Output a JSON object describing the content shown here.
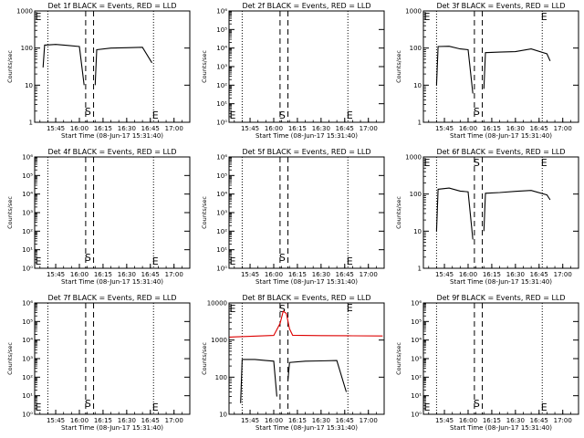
{
  "chart_data": [
    {
      "type": "line",
      "title": "Det 1f BLACK = Events, RED = LLD",
      "xlabel": "Start Time (08-Jun-17 15:31:40)",
      "ylabel": "Counts/sec",
      "xticks": [
        "15:45",
        "16:00",
        "16:15",
        "16:30",
        "16:45",
        "17:00"
      ],
      "yscale": "log",
      "ylim": [
        1,
        1000
      ],
      "yticks": [
        "1",
        "10",
        "100",
        "1000"
      ],
      "markers": {
        "S": "S",
        "E": "E",
        "E_left": "E"
      },
      "series": [
        {
          "color": "#000000",
          "x": [
            "15:37",
            "15:38",
            "15:45",
            "15:52",
            "16:00",
            "16:03"
          ],
          "y": [
            30,
            120,
            125,
            118,
            110,
            10
          ]
        },
        {
          "color": "#000000",
          "x": [
            "16:10",
            "16:11",
            "16:20",
            "16:30",
            "16:40",
            "16:46"
          ],
          "y": [
            10,
            90,
            100,
            102,
            105,
            40
          ]
        }
      ]
    },
    {
      "type": "line",
      "title": "Det 2f BLACK = Events, RED = LLD",
      "xlabel": "Start Time (08-Jun-17 15:31:40)",
      "ylabel": "Counts/sec",
      "xticks": [
        "15:45",
        "16:00",
        "16:15",
        "16:30",
        "16:45",
        "17:00"
      ],
      "yscale": "log",
      "ylim": [
        1,
        1000000
      ],
      "yticks": [
        "10⁰",
        "10¹",
        "10²",
        "10³",
        "10⁴",
        "10⁵",
        "10⁶"
      ],
      "markers": {
        "S": "S",
        "E": "E",
        "E_left": "E"
      },
      "series": []
    },
    {
      "type": "line",
      "title": "Det 3f BLACK = Events, RED = LLD",
      "xlabel": "Start Time (08-Jun-17 15:31:40)",
      "ylabel": "Counts/sec",
      "xticks": [
        "15:45",
        "16:00",
        "16:15",
        "16:30",
        "16:45",
        "17:00"
      ],
      "yscale": "log",
      "ylim": [
        1,
        1000
      ],
      "yticks": [
        "1",
        "10",
        "100",
        "1000"
      ],
      "markers": {
        "S": "S",
        "E": "E",
        "E_left": "E"
      },
      "series": [
        {
          "color": "#000000",
          "x": [
            "15:40",
            "15:41",
            "15:48",
            "15:55",
            "16:00",
            "16:03"
          ],
          "y": [
            10,
            110,
            112,
            95,
            90,
            6
          ]
        },
        {
          "color": "#000000",
          "x": [
            "16:10",
            "16:11",
            "16:20",
            "16:30",
            "16:40",
            "16:50",
            "16:52"
          ],
          "y": [
            8,
            75,
            78,
            80,
            95,
            70,
            45
          ]
        }
      ]
    },
    {
      "type": "line",
      "title": "Det 4f BLACK = Events, RED = LLD",
      "xlabel": "Start Time (08-Jun-17 15:31:40)",
      "ylabel": "Counts/sec",
      "xticks": [
        "15:45",
        "16:00",
        "16:15",
        "16:30",
        "16:45",
        "17:00"
      ],
      "yscale": "log",
      "ylim": [
        1,
        1000000
      ],
      "yticks": [
        "10⁰",
        "10¹",
        "10²",
        "10³",
        "10⁴",
        "10⁵",
        "10⁶"
      ],
      "markers": {
        "S": "S",
        "E": "E",
        "E_left": "E"
      },
      "series": []
    },
    {
      "type": "line",
      "title": "Det 5f BLACK = Events, RED = LLD",
      "xlabel": "Start Time (08-Jun-17 15:31:40)",
      "ylabel": "Counts/sec",
      "xticks": [
        "15:45",
        "16:00",
        "16:15",
        "16:30",
        "16:45",
        "17:00"
      ],
      "yscale": "log",
      "ylim": [
        1,
        1000000
      ],
      "yticks": [
        "10⁰",
        "10¹",
        "10²",
        "10³",
        "10⁴",
        "10⁵",
        "10⁶"
      ],
      "markers": {
        "S": "S",
        "E": "E",
        "E_left": "E"
      },
      "series": []
    },
    {
      "type": "line",
      "title": "Det 6f BLACK = Events, RED = LLD",
      "xlabel": "Start Time (08-Jun-17 15:31:40)",
      "ylabel": "Counts/sec",
      "xticks": [
        "15:45",
        "16:00",
        "16:15",
        "16:30",
        "16:45",
        "17:00"
      ],
      "yscale": "log",
      "ylim": [
        1,
        1000
      ],
      "yticks": [
        "1",
        "10",
        "100",
        "1000"
      ],
      "markers": {
        "S": "S",
        "E": "E",
        "E_left": "E"
      },
      "series": [
        {
          "color": "#000000",
          "x": [
            "15:40",
            "15:41",
            "15:48",
            "15:55",
            "16:00",
            "16:03"
          ],
          "y": [
            10,
            135,
            145,
            120,
            115,
            6
          ]
        },
        {
          "color": "#000000",
          "x": [
            "16:10",
            "16:11",
            "16:20",
            "16:30",
            "16:40",
            "16:50",
            "16:52"
          ],
          "y": [
            10,
            105,
            110,
            118,
            125,
            95,
            70
          ]
        }
      ]
    },
    {
      "type": "line",
      "title": "Det 7f BLACK = Events, RED = LLD",
      "xlabel": "Start Time (08-Jun-17 15:31:40)",
      "ylabel": "Counts/sec",
      "xticks": [
        "15:45",
        "16:00",
        "16:15",
        "16:30",
        "16:45",
        "17:00"
      ],
      "yscale": "log",
      "ylim": [
        1,
        1000000
      ],
      "yticks": [
        "10⁰",
        "10¹",
        "10²",
        "10³",
        "10⁴",
        "10⁵",
        "10⁶"
      ],
      "markers": {
        "S": "S",
        "E": "E",
        "E_left": "E"
      },
      "series": []
    },
    {
      "type": "line",
      "title": "Det 8f BLACK = Events, RED = LLD",
      "xlabel": "Start Time (08-Jun-17 15:31:40)",
      "ylabel": "Counts/sec",
      "xticks": [
        "15:45",
        "16:00",
        "16:15",
        "16:30",
        "16:45",
        "17:00"
      ],
      "yscale": "log",
      "ylim": [
        10,
        10000
      ],
      "yticks": [
        "10",
        "100",
        "1000",
        "10000"
      ],
      "markers": {
        "S": "S",
        "E": "E",
        "E_left": "E"
      },
      "series": [
        {
          "color": "#dd0000",
          "x": [
            "15:32",
            "15:45",
            "16:00",
            "16:04",
            "16:06",
            "16:08",
            "16:10",
            "16:12",
            "16:30",
            "16:50",
            "17:09"
          ],
          "y": [
            1200,
            1260,
            1330,
            2800,
            6000,
            5200,
            2000,
            1350,
            1320,
            1300,
            1290
          ]
        },
        {
          "color": "#000000",
          "x": [
            "15:39",
            "15:40",
            "15:48",
            "15:55",
            "16:00",
            "16:02"
          ],
          "y": [
            20,
            300,
            300,
            280,
            270,
            30
          ]
        },
        {
          "color": "#000000",
          "x": [
            "16:09",
            "16:10",
            "16:20",
            "16:30",
            "16:40",
            "16:46"
          ],
          "y": [
            80,
            250,
            270,
            275,
            280,
            40
          ]
        }
      ]
    },
    {
      "type": "line",
      "title": "Det 9f BLACK = Events, RED = LLD",
      "xlabel": "Start Time (08-Jun-17 15:31:40)",
      "ylabel": "Counts/sec",
      "xticks": [
        "15:45",
        "16:00",
        "16:15",
        "16:30",
        "16:45",
        "17:00"
      ],
      "yscale": "log",
      "ylim": [
        1,
        1000000
      ],
      "yticks": [
        "10⁰",
        "10¹",
        "10²",
        "10³",
        "10⁴",
        "10⁵",
        "10⁶"
      ],
      "markers": {
        "S": "S",
        "E": "E",
        "E_left": "E"
      },
      "series": []
    }
  ]
}
